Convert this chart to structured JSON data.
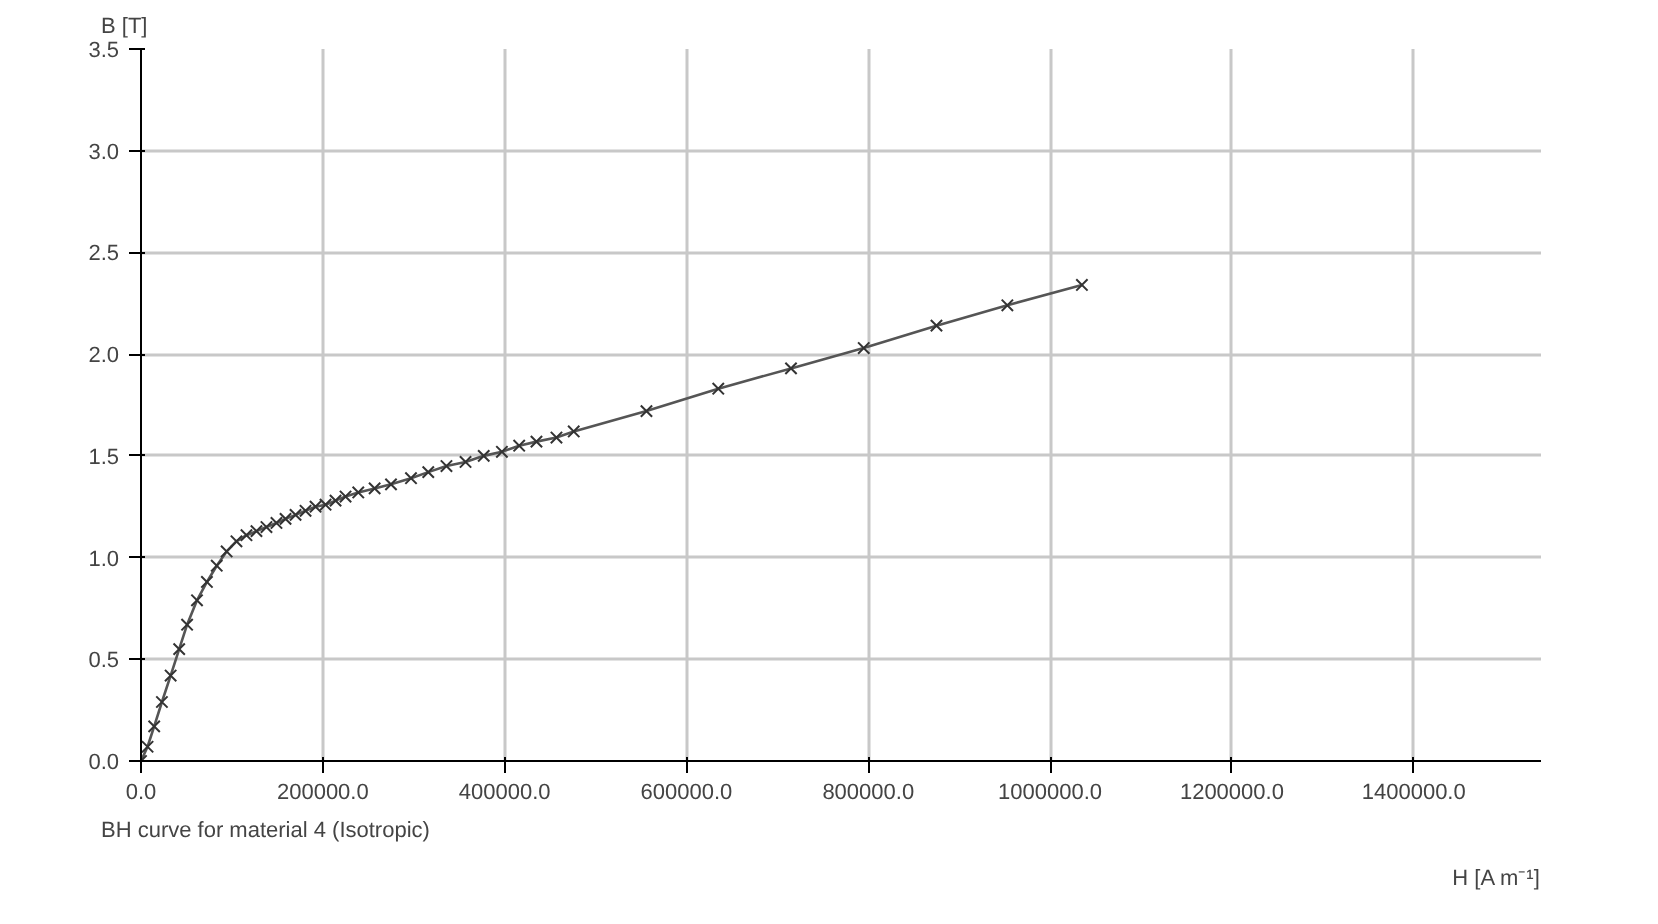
{
  "chart_data": {
    "type": "line",
    "ylabel": "B [T]",
    "xlabel": "H [A m⁻¹]",
    "annotations": [
      "BH curve for material 4 (Isotropic)"
    ],
    "x": [
      0,
      7200,
      14500,
      23000,
      32600,
      42000,
      50700,
      61600,
      72500,
      83300,
      94200,
      105000,
      116000,
      127000,
      138000,
      149000,
      159000,
      170000,
      181000,
      192000,
      203000,
      214000,
      225000,
      239000,
      257000,
      275000,
      297000,
      316000,
      336000,
      357000,
      377000,
      397000,
      416000,
      435000,
      457000,
      476000,
      556000,
      635000,
      715000,
      795000,
      875000,
      953000,
      1035000
    ],
    "series": [
      {
        "color": "#555555",
        "values": [
          0,
          0.07,
          0.17,
          0.29,
          0.42,
          0.55,
          0.67,
          0.79,
          0.88,
          0.96,
          1.03,
          1.08,
          1.11,
          1.13,
          1.15,
          1.17,
          1.19,
          1.21,
          1.23,
          1.25,
          1.26,
          1.28,
          1.3,
          1.32,
          1.34,
          1.36,
          1.39,
          1.42,
          1.45,
          1.47,
          1.5,
          1.52,
          1.55,
          1.57,
          1.59,
          1.62,
          1.72,
          1.83,
          1.93,
          2.03,
          2.14,
          2.24,
          2.34
        ]
      }
    ],
    "xlim": [
      0,
      1540000
    ],
    "ylim": [
      0,
      3.5
    ],
    "xticks": [
      {
        "value": 0,
        "label": "0.0"
      },
      {
        "value": 200000,
        "label": "200000.0"
      },
      {
        "value": 400000,
        "label": "400000.0"
      },
      {
        "value": 600000,
        "label": "600000.0"
      },
      {
        "value": 800000,
        "label": "800000.0"
      },
      {
        "value": 1000000,
        "label": "1000000.0"
      },
      {
        "value": 1200000,
        "label": "1200000.0"
      },
      {
        "value": 1400000,
        "label": "1400000.0"
      }
    ],
    "yticks": [
      {
        "value": 0,
        "label": "0.0"
      },
      {
        "value": 0.5,
        "label": "0.5"
      },
      {
        "value": 1,
        "label": "1.0"
      },
      {
        "value": 1.5,
        "label": "1.5"
      },
      {
        "value": 2,
        "label": "2.0"
      },
      {
        "value": 2.5,
        "label": "2.5"
      },
      {
        "value": 3,
        "label": "3.0"
      },
      {
        "value": 3.5,
        "label": "3.5"
      }
    ],
    "grid": true,
    "marker": "cross",
    "line_style": "solid"
  }
}
